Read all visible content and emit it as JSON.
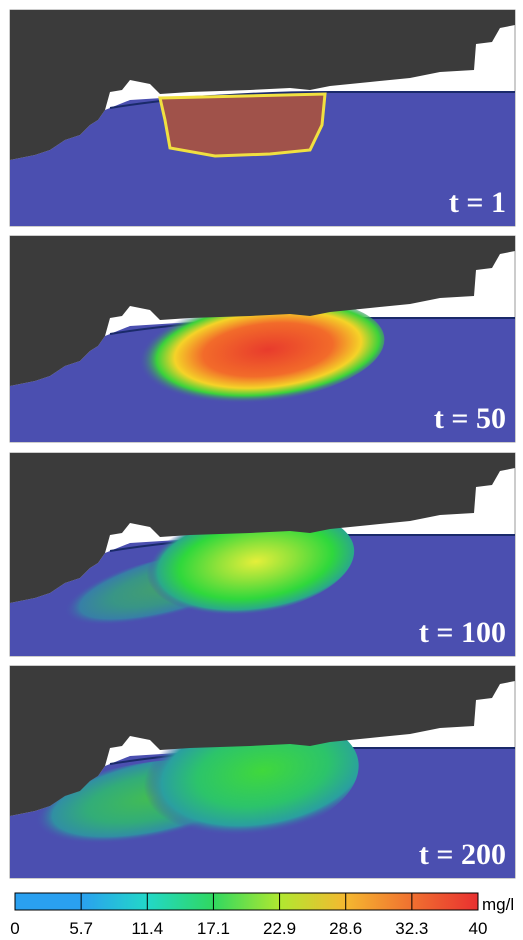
{
  "panels": [
    {
      "label": "t = 1"
    },
    {
      "label": "t = 50"
    },
    {
      "label": "t = 100"
    },
    {
      "label": "t = 200"
    }
  ],
  "colorbar": {
    "lim": [
      0,
      40
    ],
    "ticks": [
      0,
      5.7,
      11.4,
      17.1,
      22.9,
      28.6,
      32.3,
      40
    ],
    "unit": "mg/l"
  }
}
